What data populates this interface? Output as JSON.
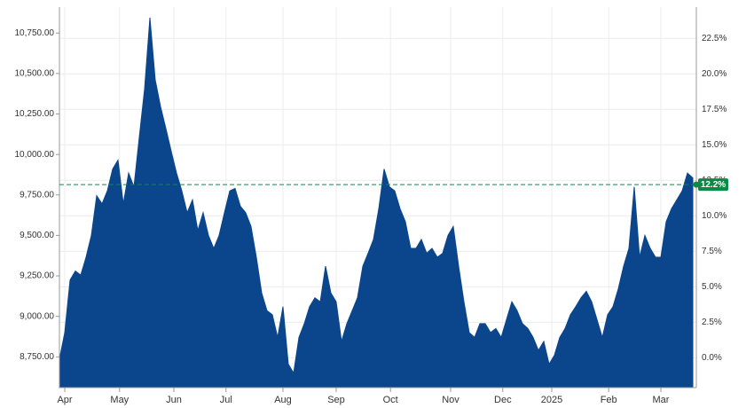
{
  "chart_data": {
    "type": "area",
    "color": "#0b468c",
    "values": [
      8735,
      8900,
      9225,
      9280,
      9255,
      9365,
      9500,
      9745,
      9695,
      9775,
      9910,
      9965,
      9695,
      9885,
      9800,
      10105,
      10405,
      10845,
      10460,
      10295,
      10160,
      10020,
      9885,
      9775,
      9640,
      9720,
      9530,
      9640,
      9500,
      9420,
      9500,
      9640,
      9775,
      9790,
      9680,
      9640,
      9555,
      9365,
      9145,
      9035,
      9010,
      8870,
      9060,
      8705,
      8650,
      8870,
      8955,
      9060,
      9115,
      9090,
      9310,
      9145,
      9090,
      8845,
      8955,
      9035,
      9115,
      9310,
      9390,
      9475,
      9665,
      9910,
      9800,
      9775,
      9665,
      9585,
      9420,
      9420,
      9475,
      9390,
      9420,
      9365,
      9390,
      9500,
      9555,
      9310,
      9090,
      8900,
      8870,
      8955,
      8955,
      8900,
      8925,
      8870,
      8980,
      9090,
      9035,
      8955,
      8925,
      8870,
      8790,
      8845,
      8705,
      8760,
      8870,
      8925,
      9010,
      9060,
      9115,
      9155,
      9090,
      8980,
      8870,
      9010,
      9060,
      9170,
      9310,
      9420,
      9800,
      9365,
      9500,
      9420,
      9365,
      9365,
      9585,
      9665,
      9720,
      9775,
      9885,
      9855
    ],
    "xlim": [
      0,
      119
    ],
    "xticks": [
      {
        "value": 1,
        "label": "Apr"
      },
      {
        "value": 11.3,
        "label": "May"
      },
      {
        "value": 21.5,
        "label": "Jun"
      },
      {
        "value": 31.3,
        "label": "Jul"
      },
      {
        "value": 42,
        "label": "Aug"
      },
      {
        "value": 52,
        "label": "Sep"
      },
      {
        "value": 62.2,
        "label": "Oct"
      },
      {
        "value": 73.5,
        "label": "Nov"
      },
      {
        "value": 83.3,
        "label": "Dec"
      },
      {
        "value": 92.5,
        "label": "2025"
      },
      {
        "value": 103.2,
        "label": "Feb"
      },
      {
        "value": 113,
        "label": "Mar"
      }
    ],
    "ylim": [
      8560,
      10910
    ],
    "yticks": [
      {
        "value": 8750,
        "label": "8,750.00"
      },
      {
        "value": 9000,
        "label": "9,000.00"
      },
      {
        "value": 9250,
        "label": "9,250.00"
      },
      {
        "value": 9500,
        "label": "9,500.00"
      },
      {
        "value": 9750,
        "label": "9,750.00"
      },
      {
        "value": 10000,
        "label": "10,000.00"
      },
      {
        "value": 10250,
        "label": "10,250.00"
      },
      {
        "value": 10500,
        "label": "10,500.00"
      },
      {
        "value": 10750,
        "label": "10,750.00"
      }
    ],
    "y2lim": [
      -2.1,
      24.7
    ],
    "y2ticks": [
      {
        "value": 0,
        "label": "0.0%"
      },
      {
        "value": 2.5,
        "label": "2.5%"
      },
      {
        "value": 5,
        "label": "5.0%"
      },
      {
        "value": 7.5,
        "label": "7.5%"
      },
      {
        "value": 10,
        "label": "10.0%"
      },
      {
        "value": 12.5,
        "label": "12.5%"
      },
      {
        "value": 15,
        "label": "15.0%"
      },
      {
        "value": 17.5,
        "label": "17.5%"
      },
      {
        "value": 20,
        "label": "20.0%"
      },
      {
        "value": 22.5,
        "label": "22.5%"
      }
    ],
    "grid": true,
    "marker": {
      "value": 12.2,
      "label": "12.2%",
      "color": "#0c8a45"
    }
  }
}
